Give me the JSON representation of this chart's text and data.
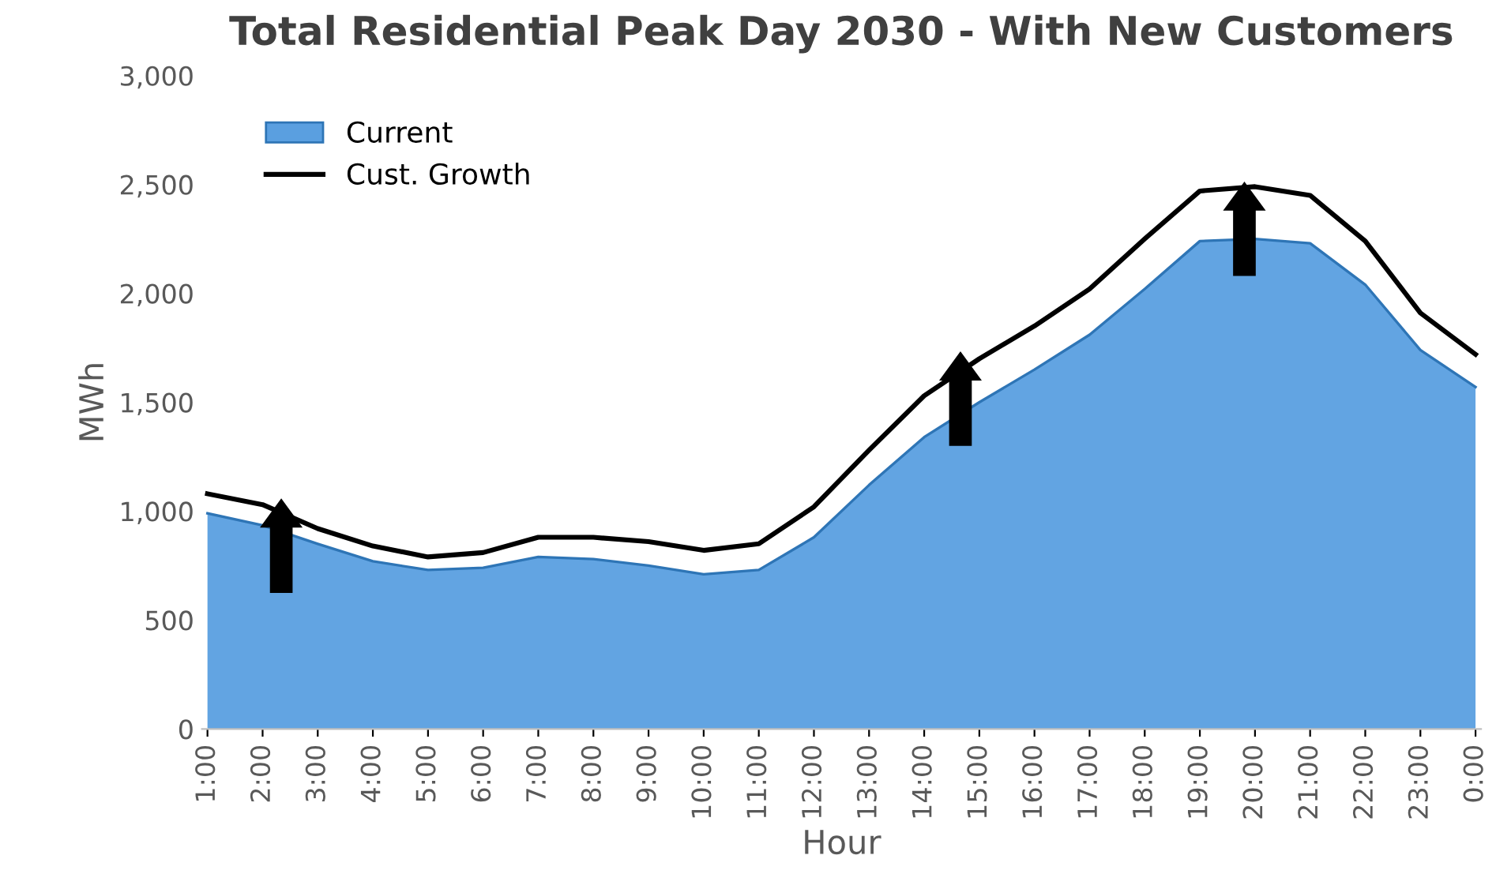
{
  "chart_data": {
    "type": "area",
    "title": "Total Residential Peak Day 2030 - With New Customers",
    "xlabel": "Hour",
    "ylabel": "MWh",
    "categories": [
      "1:00",
      "2:00",
      "3:00",
      "4:00",
      "5:00",
      "6:00",
      "7:00",
      "8:00",
      "9:00",
      "10:00",
      "11:00",
      "12:00",
      "13:00",
      "14:00",
      "15:00",
      "16:00",
      "17:00",
      "18:00",
      "19:00",
      "20:00",
      "21:00",
      "22:00",
      "23:00",
      "0:00"
    ],
    "series": [
      {
        "name": "Current",
        "color": "#5a9fe0",
        "values": [
          990,
          935,
          850,
          770,
          730,
          740,
          790,
          780,
          750,
          710,
          730,
          880,
          1120,
          1340,
          1500,
          1650,
          1810,
          2020,
          2240,
          2250,
          2230,
          2040,
          1740,
          1570
        ]
      },
      {
        "name": "Cust. Growth",
        "type": "line",
        "color": "#000000",
        "values": [
          1080,
          1030,
          920,
          840,
          790,
          810,
          880,
          880,
          860,
          820,
          850,
          1020,
          1280,
          1530,
          1700,
          1850,
          2020,
          2250,
          2470,
          2490,
          2450,
          2240,
          1910,
          1720
        ]
      }
    ],
    "ylim": [
      0,
      3000
    ],
    "yticks": [
      0,
      {
        "value": 500,
        "label": "500"
      },
      {
        "value": 1000,
        "label": "1,000"
      },
      {
        "value": 1500,
        "label": "1,500"
      },
      {
        "value": 2000,
        "label": "2,000"
      },
      {
        "value": 2500,
        "label": "2,500"
      },
      {
        "value": 3000,
        "label": "3,000"
      }
    ],
    "grid": false,
    "legend": "top left"
  }
}
